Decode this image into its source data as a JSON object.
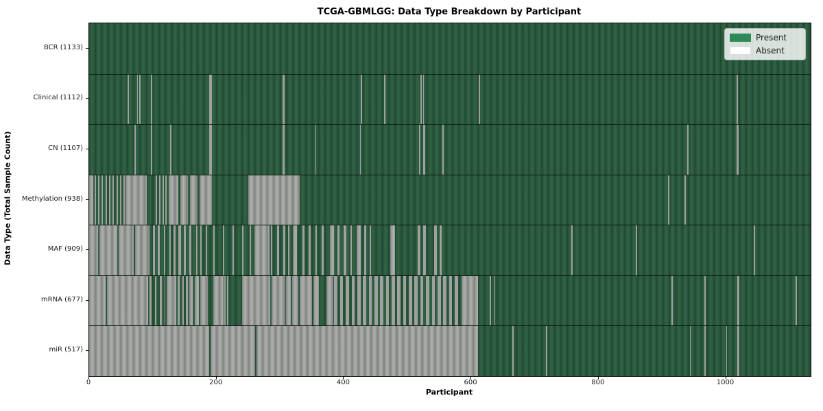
{
  "title": "TCGA-GBMLGG: Data Type Breakdown by Participant",
  "xlabel": "Participant",
  "ylabel": "Data Type (Total Sample Count)",
  "legend": {
    "present_label": "Present",
    "absent_label": "Absent"
  },
  "colors": {
    "present": "#2e8b57",
    "absent": "#ffffff",
    "present_bar_shade": "#2a5a3e",
    "absent_bar_shade": "#9b9d9b"
  },
  "chart_data": {
    "type": "heatmap",
    "title": "TCGA-GBMLGG: Data Type Breakdown by Participant",
    "xlabel": "Participant",
    "ylabel": "Data Type (Total Sample Count)",
    "legend_entries": [
      "Present",
      "Absent"
    ],
    "legend_position": "upper right",
    "x_max": 1133,
    "xticks": [
      0,
      200,
      400,
      600,
      800,
      1000
    ],
    "value_encoding": {
      "present": 1,
      "absent": 0
    },
    "rows": [
      {
        "name": "BCR",
        "label": "BCR (1133)",
        "total": 1133,
        "absent_ranges": []
      },
      {
        "name": "Clinical",
        "label": "Clinical (1112)",
        "total": 1112,
        "absent_ranges": [
          [
            60,
            62
          ],
          [
            75,
            77
          ],
          [
            79,
            81
          ],
          [
            97,
            99
          ],
          [
            188,
            193
          ],
          [
            304,
            307
          ],
          [
            427,
            429
          ],
          [
            463,
            465
          ],
          [
            520,
            522
          ],
          [
            524,
            526
          ],
          [
            612,
            614
          ],
          [
            1017,
            1019
          ]
        ]
      },
      {
        "name": "CN",
        "label": "CN (1107)",
        "total": 1107,
        "absent_ranges": [
          [
            71,
            73
          ],
          [
            97,
            99
          ],
          [
            127,
            129
          ],
          [
            188,
            193
          ],
          [
            304,
            307
          ],
          [
            355,
            357
          ],
          [
            425,
            427
          ],
          [
            518,
            520
          ],
          [
            525,
            528
          ],
          [
            555,
            557
          ],
          [
            939,
            941
          ],
          [
            1017,
            1020
          ]
        ]
      },
      {
        "name": "Methylation",
        "label": "Methylation (938)",
        "total": 938,
        "absent_ranges": [
          [
            0,
            6
          ],
          [
            9,
            11
          ],
          [
            14,
            16
          ],
          [
            19,
            22
          ],
          [
            26,
            28
          ],
          [
            31,
            33
          ],
          [
            37,
            39
          ],
          [
            43,
            45
          ],
          [
            49,
            51
          ],
          [
            54,
            56
          ],
          [
            57,
            90
          ],
          [
            105,
            107
          ],
          [
            110,
            112
          ],
          [
            115,
            117
          ],
          [
            120,
            122
          ],
          [
            125,
            140
          ],
          [
            143,
            155
          ],
          [
            158,
            170
          ],
          [
            173,
            193
          ],
          [
            250,
            331
          ],
          [
            909,
            911
          ],
          [
            935,
            937
          ]
        ]
      },
      {
        "name": "MAF",
        "label": "MAF (909)",
        "total": 909,
        "absent_ranges": [
          [
            0,
            14
          ],
          [
            16,
            44
          ],
          [
            46,
            70
          ],
          [
            72,
            95
          ],
          [
            100,
            103
          ],
          [
            108,
            111
          ],
          [
            117,
            120
          ],
          [
            126,
            128
          ],
          [
            132,
            136
          ],
          [
            140,
            144
          ],
          [
            149,
            152
          ],
          [
            157,
            160
          ],
          [
            168,
            170
          ],
          [
            175,
            177
          ],
          [
            183,
            185
          ],
          [
            195,
            197
          ],
          [
            210,
            212
          ],
          [
            225,
            227
          ],
          [
            240,
            242
          ],
          [
            252,
            254
          ],
          [
            260,
            283
          ],
          [
            285,
            288
          ],
          [
            295,
            298
          ],
          [
            305,
            308
          ],
          [
            312,
            315
          ],
          [
            320,
            326
          ],
          [
            335,
            338
          ],
          [
            345,
            348
          ],
          [
            355,
            358
          ],
          [
            365,
            368
          ],
          [
            378,
            385
          ],
          [
            390,
            393
          ],
          [
            400,
            404
          ],
          [
            410,
            413
          ],
          [
            420,
            426
          ],
          [
            432,
            435
          ],
          [
            440,
            443
          ],
          [
            473,
            480
          ],
          [
            516,
            520
          ],
          [
            525,
            529
          ],
          [
            542,
            546
          ],
          [
            550,
            554
          ],
          [
            757,
            759
          ],
          [
            858,
            860
          ],
          [
            1044,
            1046
          ]
        ]
      },
      {
        "name": "mRNA",
        "label": "mRNA (677)",
        "total": 677,
        "absent_ranges": [
          [
            0,
            26
          ],
          [
            28,
            93
          ],
          [
            95,
            98
          ],
          [
            103,
            106
          ],
          [
            111,
            114
          ],
          [
            118,
            120
          ],
          [
            122,
            137
          ],
          [
            139,
            142
          ],
          [
            146,
            149
          ],
          [
            152,
            155
          ],
          [
            157,
            163
          ],
          [
            166,
            172
          ],
          [
            175,
            186
          ],
          [
            195,
            211
          ],
          [
            212,
            214
          ],
          [
            217,
            219
          ],
          [
            240,
            284
          ],
          [
            286,
            308
          ],
          [
            309,
            317
          ],
          [
            319,
            329
          ],
          [
            331,
            350
          ],
          [
            352,
            361
          ],
          [
            373,
            383
          ],
          [
            385,
            390
          ],
          [
            394,
            399
          ],
          [
            403,
            408
          ],
          [
            412,
            417
          ],
          [
            421,
            426
          ],
          [
            430,
            435
          ],
          [
            439,
            444
          ],
          [
            448,
            453
          ],
          [
            457,
            462
          ],
          [
            466,
            471
          ],
          [
            475,
            480
          ],
          [
            484,
            489
          ],
          [
            493,
            498
          ],
          [
            502,
            507
          ],
          [
            511,
            516
          ],
          [
            520,
            525
          ],
          [
            529,
            534
          ],
          [
            538,
            543
          ],
          [
            547,
            552
          ],
          [
            556,
            561
          ],
          [
            565,
            570
          ],
          [
            574,
            579
          ],
          [
            585,
            611
          ],
          [
            629,
            631
          ],
          [
            636,
            638
          ],
          [
            914,
            916
          ],
          [
            966,
            968
          ],
          [
            1018,
            1021
          ],
          [
            1109,
            1111
          ]
        ]
      },
      {
        "name": "miR",
        "label": "miR (517)",
        "total": 517,
        "absent_ranges": [
          [
            0,
            189
          ],
          [
            191,
            261
          ],
          [
            263,
            611
          ],
          [
            665,
            667
          ],
          [
            717,
            719
          ],
          [
            943,
            945
          ],
          [
            966,
            968
          ],
          [
            1000,
            1002
          ],
          [
            1018,
            1021
          ]
        ]
      }
    ]
  }
}
